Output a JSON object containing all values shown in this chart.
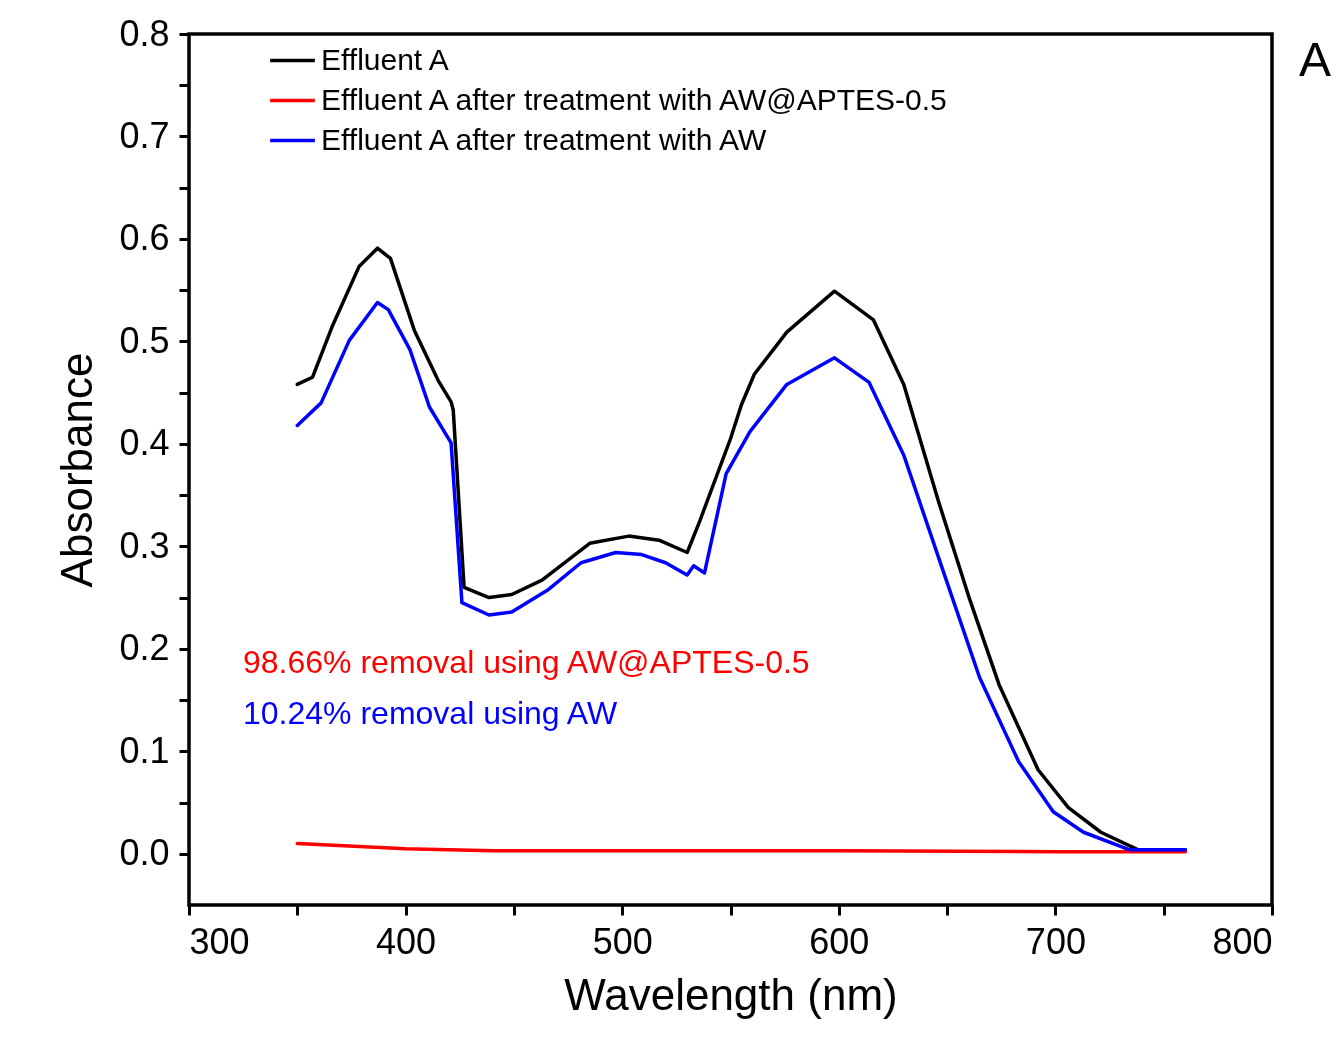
{
  "chart_data": {
    "type": "line",
    "xlabel": "Wavelength (nm)",
    "ylabel": "Absorbance",
    "xlim": [
      300,
      800
    ],
    "xticks": [
      300,
      {
        "value": 350,
        "label": null
      },
      400,
      {
        "value": 450,
        "label": null
      },
      500,
      {
        "value": 550,
        "label": null
      },
      600,
      {
        "value": 650,
        "label": null
      },
      700,
      {
        "value": 750,
        "label": null
      },
      800
    ],
    "ylim": [
      -0.05,
      0.8
    ],
    "yticks": [
      {
        "value": 0,
        "label": "0.0"
      },
      {
        "value": 0.05,
        "label": null
      },
      0.1,
      {
        "value": 0.15,
        "label": null
      },
      0.2,
      {
        "value": 0.25,
        "label": null
      },
      0.3,
      {
        "value": 0.35,
        "label": null
      },
      0.4,
      {
        "value": 0.45,
        "label": null
      },
      0.5,
      {
        "value": 0.55,
        "label": null
      },
      0.6,
      {
        "value": 0.65,
        "label": null
      },
      0.7,
      {
        "value": 0.75,
        "label": null
      },
      0.8
    ],
    "grid": false,
    "legend": "top left",
    "line_style": "solid",
    "marker": "none",
    "annotations": [
      "A",
      "98.66% removal using AW@APTES-0.5",
      "10.24% removal using AW"
    ],
    "series": [
      {
        "name": "Effluent A",
        "color": "#000000",
        "x": [
          350,
          357,
          366,
          378.5,
          387,
          393,
          404,
          415,
          421,
          422,
          427,
          438.5,
          449,
          463,
          485,
          503,
          517,
          530,
          535.5,
          550,
          555,
          561,
          576,
          598,
          616,
          630,
          646,
          660,
          674,
          692,
          706,
          721,
          738,
          760
        ],
        "values": [
          0.458,
          0.465,
          0.514,
          0.573,
          0.591,
          0.581,
          0.511,
          0.462,
          0.441,
          0.433,
          0.26,
          0.25,
          0.253,
          0.267,
          0.303,
          0.31,
          0.306,
          0.294,
          0.323,
          0.405,
          0.438,
          0.468,
          0.509,
          0.549,
          0.521,
          0.458,
          0.344,
          0.251,
          0.165,
          0.082,
          0.045,
          0.021,
          0.004,
          0.004
        ]
      },
      {
        "name": "Effluent A after treatment with AW@APTES-0.5",
        "color": "#ff0000",
        "x": [
          350,
          400,
          440,
          500,
          600,
          700,
          760
        ],
        "values": [
          0.01,
          0.005,
          0.003,
          0.003,
          0.003,
          0.002,
          0.002
        ]
      },
      {
        "name": "Effluent A after treatment with AW",
        "color": "#0000ff",
        "x": [
          350,
          361,
          374,
          387,
          392,
          402,
          411,
          421,
          426,
          438.5,
          449,
          466,
          481,
          497,
          509,
          520,
          530,
          533,
          538,
          548,
          559,
          576,
          598,
          614,
          630,
          648,
          665,
          683,
          699,
          713,
          734,
          760
        ],
        "values": [
          0.418,
          0.44,
          0.501,
          0.538,
          0.531,
          0.492,
          0.436,
          0.401,
          0.245,
          0.233,
          0.236,
          0.258,
          0.284,
          0.294,
          0.292,
          0.284,
          0.272,
          0.281,
          0.274,
          0.371,
          0.412,
          0.458,
          0.484,
          0.46,
          0.389,
          0.277,
          0.172,
          0.09,
          0.041,
          0.021,
          0.004,
          0.004
        ]
      }
    ]
  }
}
